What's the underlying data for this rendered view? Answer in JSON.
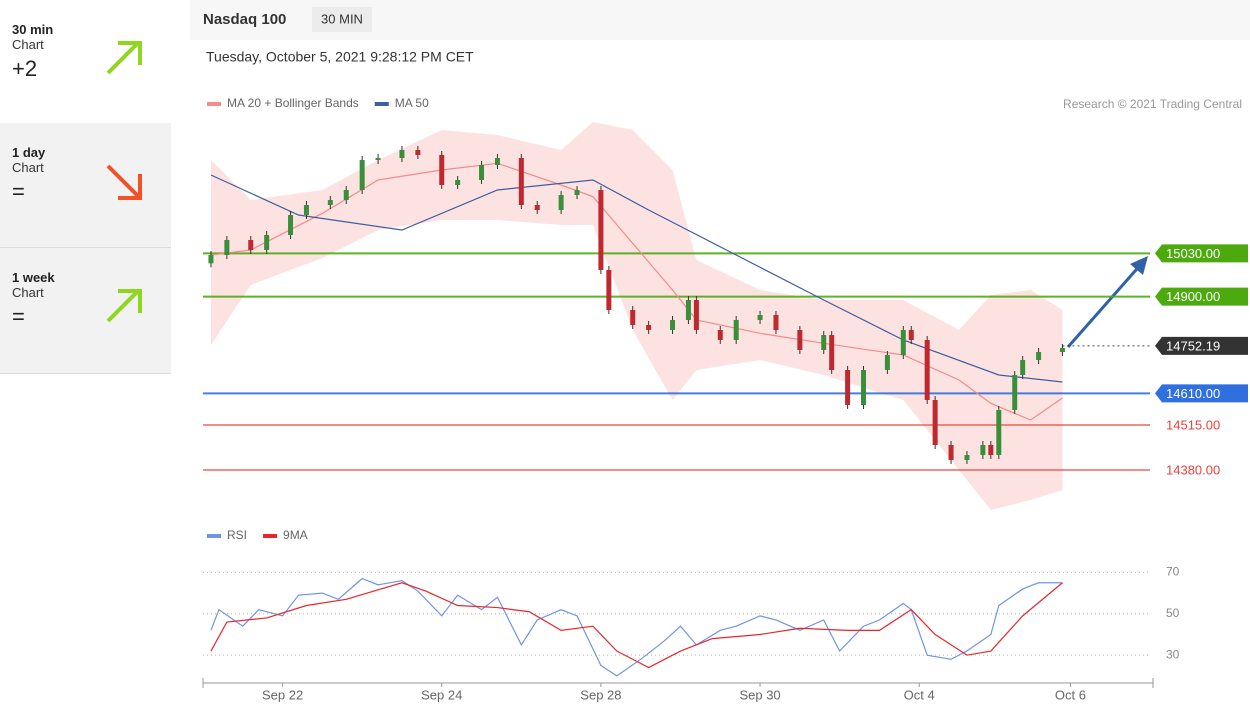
{
  "sidebar": [
    {
      "period": "30 min",
      "label": "Chart",
      "value": "+2"
    },
    {
      "period": "1 day",
      "label": "Chart",
      "value": "="
    },
    {
      "period": "1 week",
      "label": "Chart",
      "value": "="
    }
  ],
  "header": {
    "symbol": "Nasdaq 100",
    "interval": "30 MIN",
    "timestamp": "Tuesday, October 5, 2021 9:28:12 PM CET",
    "credit": "Research © 2021 Trading Central"
  },
  "chart_data": [
    {
      "type": "candlestick",
      "xlim": [
        0,
        119
      ],
      "ylim": [
        14230,
        15430
      ],
      "up_color": "#3a8f3a",
      "down_color": "#c0282f",
      "x": [
        1,
        3,
        6,
        8,
        11,
        13,
        16,
        18,
        20,
        22,
        25,
        27,
        30,
        32,
        35,
        37,
        40,
        42,
        45,
        47,
        50,
        51,
        54,
        56,
        59,
        61,
        62,
        65,
        67,
        70,
        72,
        75,
        78,
        79,
        81,
        83,
        86,
        88,
        89,
        91,
        92,
        94,
        96,
        98,
        99,
        100,
        102,
        103,
        105,
        108
      ],
      "open": [
        15000,
        15025,
        15070,
        15040,
        15085,
        15145,
        15175,
        15190,
        15220,
        15310,
        15316,
        15340,
        15325,
        15235,
        15250,
        15295,
        15316,
        15175,
        15160,
        15205,
        15220,
        14980,
        14860,
        14815,
        14800,
        14830,
        14890,
        14800,
        14770,
        14830,
        14845,
        14800,
        14740,
        14785,
        14680,
        14575,
        14680,
        14725,
        14800,
        14770,
        14590,
        14455,
        14410,
        14425,
        14455,
        14425,
        14560,
        14665,
        14710,
        14734
      ],
      "high": [
        15037,
        15082,
        15082,
        15097,
        15157,
        15187,
        15202,
        15232,
        15322,
        15328,
        15352,
        15352,
        15337,
        15262,
        15307,
        15328,
        15328,
        15187,
        15217,
        15232,
        15232,
        14992,
        14872,
        14827,
        14842,
        14902,
        14902,
        14812,
        14842,
        14857,
        14857,
        14812,
        14797,
        14797,
        14692,
        14692,
        14737,
        14812,
        14812,
        14782,
        14602,
        14467,
        14437,
        14467,
        14467,
        14572,
        14677,
        14722,
        14746,
        14758
      ],
      "low": [
        14988,
        15013,
        15028,
        15028,
        15073,
        15133,
        15163,
        15178,
        15208,
        15298,
        15304,
        15313,
        15223,
        15223,
        15238,
        15283,
        15163,
        15148,
        15148,
        15193,
        14968,
        14848,
        14803,
        14788,
        14788,
        14818,
        14788,
        14758,
        14758,
        14818,
        14788,
        14728,
        14728,
        14668,
        14563,
        14563,
        14668,
        14713,
        14758,
        14578,
        14443,
        14398,
        14398,
        14413,
        14413,
        14413,
        14548,
        14653,
        14698,
        14722
      ],
      "close": [
        15025,
        15070,
        15040,
        15085,
        15145,
        15175,
        15190,
        15220,
        15310,
        15316,
        15340,
        15325,
        15235,
        15250,
        15295,
        15316,
        15175,
        15160,
        15205,
        15220,
        14980,
        14860,
        14815,
        14800,
        14830,
        14890,
        14800,
        14770,
        14830,
        14845,
        14800,
        14740,
        14785,
        14680,
        14575,
        14680,
        14725,
        14800,
        14770,
        14590,
        14455,
        14410,
        14425,
        14455,
        14425,
        14560,
        14665,
        14710,
        14734,
        14746
      ],
      "series": [
        {
          "name": "MA 20 + Bollinger Bands",
          "color": "#f28b8b",
          "band_color": "#fde2e2",
          "x": [
            1,
            6,
            15,
            22,
            30,
            37,
            45,
            49,
            54,
            59,
            62,
            70,
            78,
            88,
            95,
            99,
            104,
            108
          ],
          "values": [
            15025,
            15040,
            15150,
            15250,
            15280,
            15300,
            15235,
            15200,
            15060,
            14920,
            14830,
            14790,
            14760,
            14725,
            14650,
            14580,
            14530,
            14596
          ],
          "upper": [
            15310,
            15190,
            15220,
            15310,
            15400,
            15385,
            15340,
            15424,
            15400,
            15280,
            15010,
            14920,
            14890,
            14890,
            14800,
            14905,
            14920,
            14860
          ],
          "lower": [
            14755,
            14935,
            15016,
            15100,
            15130,
            15130,
            15115,
            15115,
            14800,
            14590,
            14680,
            14710,
            14665,
            14590,
            14380,
            14260,
            14290,
            14320
          ]
        },
        {
          "name": "MA 50",
          "color": "#3d5f9e",
          "x": [
            1,
            12,
            25,
            37,
            49,
            56,
            67,
            78,
            88,
            100,
            108
          ],
          "values": [
            15265,
            15145,
            15100,
            15220,
            15250,
            15160,
            15025,
            14890,
            14770,
            14665,
            14644
          ]
        }
      ],
      "levels": [
        {
          "value": 15030,
          "label": "15030.00",
          "color": "#4caa0f",
          "boxed": true,
          "dotted": false
        },
        {
          "value": 14900,
          "label": "14900.00",
          "color": "#4caa0f",
          "boxed": true,
          "dotted": false
        },
        {
          "value": 14752.19,
          "label": "14752.19",
          "color": "#333333",
          "boxed": true,
          "dotted": true
        },
        {
          "value": 14610,
          "label": "14610.00",
          "color": "#2f6fe0",
          "boxed": true,
          "dotted": false
        },
        {
          "value": 14515,
          "label": "14515.00",
          "color": "#e8413a",
          "boxed": false,
          "dotted": false
        },
        {
          "value": 14380,
          "label": "14380.00",
          "color": "#e8413a",
          "boxed": false,
          "dotted": false
        }
      ]
    },
    {
      "type": "line",
      "xlim": [
        0,
        119
      ],
      "ylim": [
        18,
        76
      ],
      "yticks": [
        30,
        50,
        70
      ],
      "grid": true,
      "xticks": [
        {
          "value": 10,
          "label": "Sep 22"
        },
        {
          "value": 30,
          "label": "Sep 24"
        },
        {
          "value": 50,
          "label": "Sep 28"
        },
        {
          "value": 70,
          "label": "Sep 30"
        },
        {
          "value": 90,
          "label": "Oct 4"
        },
        {
          "value": 109,
          "label": "Oct 6"
        }
      ],
      "series": [
        {
          "name": "RSI",
          "color": "#7094e6",
          "x": [
            1,
            2,
            5,
            7,
            10,
            12,
            15,
            17,
            20,
            22,
            25,
            27,
            30,
            32,
            35,
            37,
            40,
            42,
            45,
            47,
            50,
            52,
            55,
            58,
            60,
            62,
            65,
            67,
            70,
            72,
            75,
            78,
            80,
            83,
            85,
            88,
            89,
            91,
            94,
            96,
            99,
            100,
            103,
            105,
            108
          ],
          "values": [
            42,
            52,
            44,
            52,
            49,
            59,
            60,
            57,
            67,
            64,
            66,
            61,
            49,
            59,
            52,
            58,
            35,
            47,
            52,
            49,
            25,
            20,
            28,
            37,
            44,
            35,
            42,
            44,
            49,
            47,
            42,
            47,
            32,
            44,
            47,
            55,
            52,
            30,
            28,
            32,
            40,
            54,
            62,
            65,
            65
          ]
        },
        {
          "name": "9MA",
          "color": "#e8262b",
          "x": [
            1,
            3,
            8,
            13,
            18,
            25,
            28,
            32,
            37,
            41,
            45,
            49,
            52,
            56,
            60,
            64,
            70,
            75,
            81,
            85,
            89,
            92,
            96,
            99,
            103,
            108
          ],
          "values": [
            32,
            46,
            48,
            54,
            57,
            65,
            61,
            54,
            53,
            51,
            42,
            44,
            32,
            24,
            32,
            38,
            40,
            43,
            42,
            42,
            52,
            40,
            30,
            32,
            49,
            65
          ]
        }
      ]
    }
  ]
}
